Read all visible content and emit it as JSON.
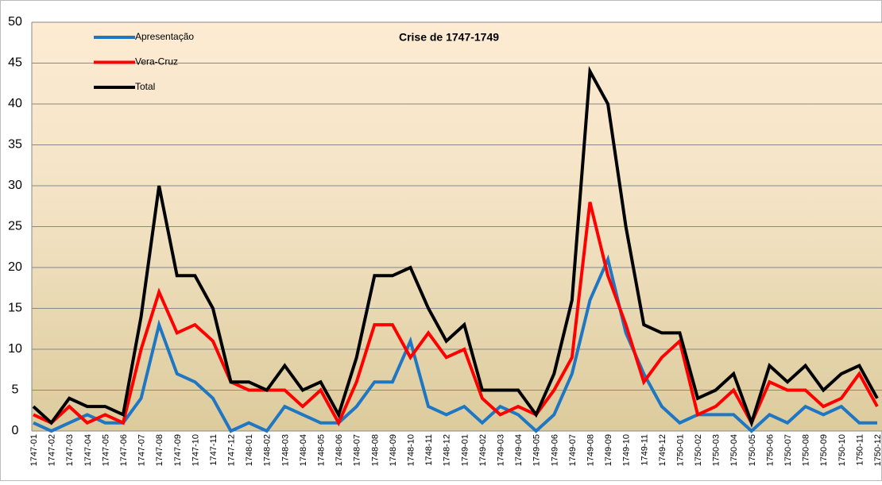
{
  "chart_data": {
    "type": "line",
    "title": "Crise de 1747-1749",
    "categories": [
      "1747-01",
      "1747-02",
      "1747-03",
      "1747-04",
      "1747-05",
      "1747-06",
      "1747-07",
      "1747-08",
      "1747-09",
      "1747-10",
      "1747-11",
      "1747-12",
      "1748-01",
      "1748-02",
      "1748-03",
      "1748-04",
      "1748-05",
      "1748-06",
      "1748-07",
      "1748-08",
      "1748-09",
      "1748-10",
      "1748-11",
      "1748-12",
      "1749-01",
      "1749-02",
      "1749-03",
      "1749-04",
      "1749-05",
      "1749-06",
      "1749-07",
      "1749-08",
      "1749-09",
      "1749-10",
      "1749-11",
      "1749-12",
      "1750-01",
      "1750-02",
      "1750-03",
      "1750-04",
      "1750-05",
      "1750-06",
      "1750-07",
      "1750-08",
      "1750-09",
      "1750-10",
      "1750-11",
      "1750-12"
    ],
    "series": [
      {
        "name": "Apresentação",
        "color": "#1f77c4",
        "values": [
          1,
          0,
          1,
          2,
          1,
          1,
          4,
          13,
          7,
          6,
          4,
          0,
          1,
          0,
          3,
          2,
          1,
          1,
          3,
          6,
          6,
          11,
          3,
          2,
          3,
          1,
          3,
          2,
          0,
          2,
          7,
          16,
          21,
          12,
          7,
          3,
          1,
          2,
          2,
          2,
          0,
          2,
          1,
          3,
          2,
          3,
          1,
          1
        ]
      },
      {
        "name": "Vera-Cruz",
        "color": "#ff0000",
        "values": [
          2,
          1,
          3,
          1,
          2,
          1,
          10,
          17,
          12,
          13,
          11,
          6,
          5,
          5,
          5,
          3,
          5,
          1,
          6,
          13,
          13,
          9,
          12,
          9,
          10,
          4,
          2,
          3,
          2,
          5,
          9,
          28,
          19,
          13,
          6,
          9,
          11,
          2,
          3,
          5,
          1,
          6,
          5,
          5,
          3,
          4,
          7,
          3
        ]
      },
      {
        "name": "Total",
        "color": "#000000",
        "values": [
          3,
          1,
          4,
          3,
          3,
          2,
          14,
          30,
          19,
          19,
          15,
          6,
          6,
          5,
          8,
          5,
          6,
          2,
          9,
          19,
          19,
          20,
          15,
          11,
          13,
          5,
          5,
          5,
          2,
          7,
          16,
          44,
          40,
          25,
          13,
          12,
          12,
          4,
          5,
          7,
          1,
          8,
          6,
          8,
          5,
          7,
          8,
          4
        ]
      }
    ],
    "ylim": [
      0,
      50
    ],
    "yticks": [
      0,
      5,
      10,
      15,
      20,
      25,
      30,
      35,
      40,
      45,
      50
    ],
    "grid": true
  }
}
